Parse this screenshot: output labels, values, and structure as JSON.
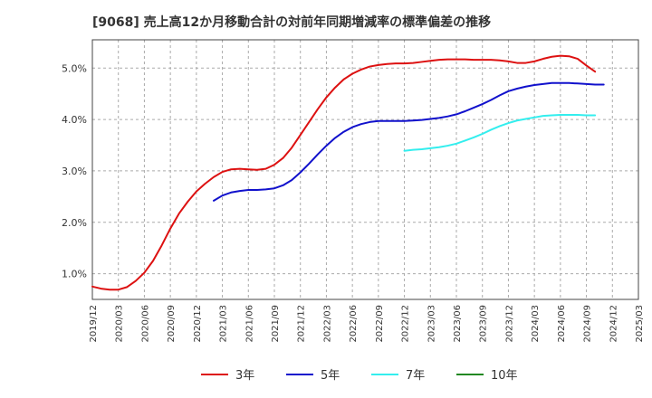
{
  "title": "[9068]  売上高12か月移動合計の対前年同期増減率の標準偏差の推移",
  "chart_data": {
    "type": "line",
    "title": "[9068]  売上高12か月移動合計の対前年同期増減率の標準偏差の推移",
    "xlabel": "",
    "ylabel": "",
    "x_range": [
      "2019/12",
      "2025/03"
    ],
    "ylim": [
      0.5,
      5.55
    ],
    "y_ticks": [
      1.0,
      2.0,
      3.0,
      4.0,
      5.0
    ],
    "y_tick_labels": [
      "1.0%",
      "2.0%",
      "3.0%",
      "4.0%",
      "5.0%"
    ],
    "x_tick_labels": [
      "2019/12",
      "2020/03",
      "2020/06",
      "2020/09",
      "2020/12",
      "2021/03",
      "2021/06",
      "2021/09",
      "2021/12",
      "2022/03",
      "2022/06",
      "2022/09",
      "2022/12",
      "2023/03",
      "2023/06",
      "2023/09",
      "2023/12",
      "2024/03",
      "2024/06",
      "2024/09",
      "2024/12",
      "2025/03"
    ],
    "grid": true,
    "legend_position": "bottom",
    "series": [
      {
        "name": "3年",
        "color": "#dd1111",
        "start": "2019/12",
        "values": [
          0.75,
          0.71,
          0.69,
          0.69,
          0.74,
          0.86,
          1.02,
          1.25,
          1.55,
          1.88,
          2.17,
          2.4,
          2.6,
          2.75,
          2.88,
          2.98,
          3.03,
          3.04,
          3.03,
          3.02,
          3.04,
          3.12,
          3.25,
          3.45,
          3.7,
          3.95,
          4.2,
          4.43,
          4.62,
          4.78,
          4.89,
          4.97,
          5.03,
          5.06,
          5.08,
          5.09,
          5.09,
          5.1,
          5.12,
          5.14,
          5.16,
          5.17,
          5.17,
          5.17,
          5.16,
          5.16,
          5.16,
          5.15,
          5.13,
          5.1,
          5.1,
          5.13,
          5.18,
          5.22,
          5.24,
          5.23,
          5.18,
          5.05,
          4.93
        ]
      },
      {
        "name": "5年",
        "color": "#1111cc",
        "start": "2021/02",
        "values": [
          2.42,
          2.52,
          2.58,
          2.61,
          2.63,
          2.63,
          2.64,
          2.66,
          2.72,
          2.82,
          2.97,
          3.14,
          3.32,
          3.49,
          3.64,
          3.76,
          3.85,
          3.91,
          3.95,
          3.97,
          3.97,
          3.97,
          3.97,
          3.98,
          3.99,
          4.01,
          4.03,
          4.06,
          4.1,
          4.16,
          4.23,
          4.3,
          4.38,
          4.47,
          4.55,
          4.6,
          4.64,
          4.67,
          4.69,
          4.71,
          4.71,
          4.71,
          4.7,
          4.69,
          4.68,
          4.68
        ]
      },
      {
        "name": "7年",
        "color": "#33eeee",
        "start": "2022/12",
        "values": [
          3.39,
          3.41,
          3.42,
          3.44,
          3.46,
          3.49,
          3.53,
          3.59,
          3.65,
          3.72,
          3.8,
          3.87,
          3.93,
          3.98,
          4.01,
          4.04,
          4.07,
          4.08,
          4.09,
          4.09,
          4.09,
          4.08,
          4.08
        ]
      },
      {
        "name": "10年",
        "color": "#228822",
        "start": "2025/03",
        "values": []
      }
    ]
  }
}
